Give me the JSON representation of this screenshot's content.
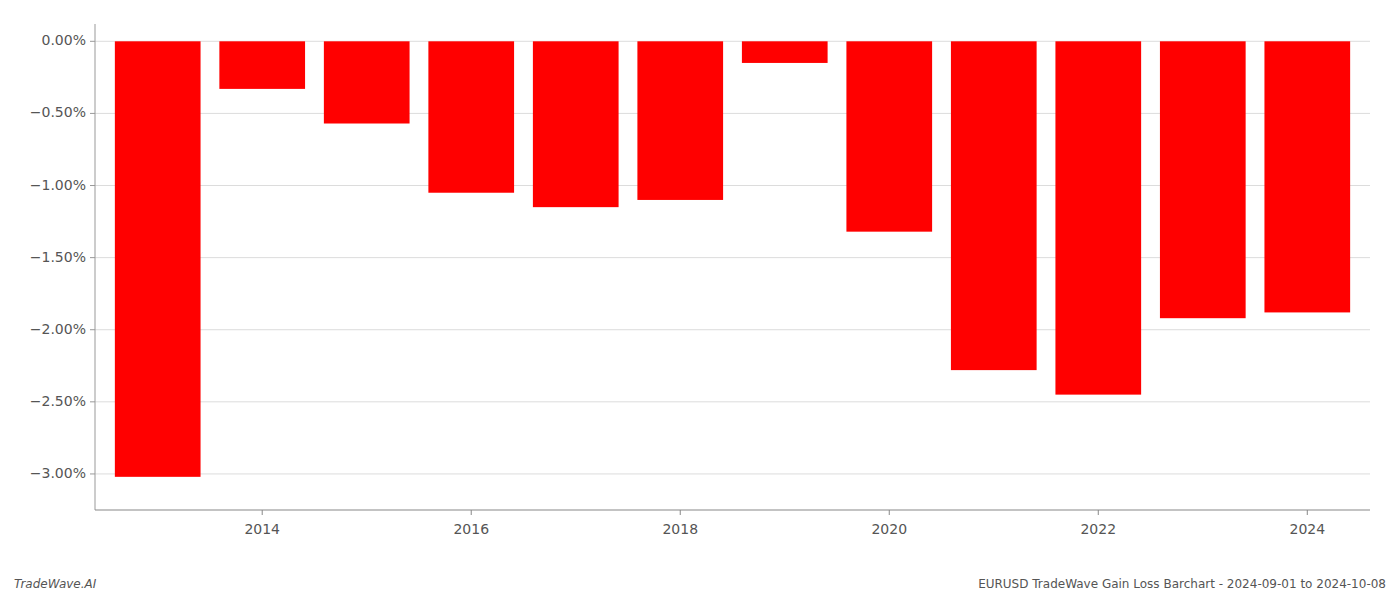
{
  "chart_data": {
    "type": "bar",
    "x": [
      2013,
      2014,
      2015,
      2016,
      2017,
      2018,
      2019,
      2020,
      2021,
      2022,
      2023,
      2024
    ],
    "values": [
      -3.02,
      -0.33,
      -0.57,
      -1.05,
      -1.15,
      -1.1,
      -0.15,
      -1.32,
      -2.28,
      -2.45,
      -1.92,
      -1.88
    ],
    "color": "#ff0000",
    "xlim": [
      2012.4,
      2024.6
    ],
    "xticks": [
      2014,
      2016,
      2018,
      2020,
      2022,
      2024
    ],
    "ylim": [
      -3.25,
      0.12
    ],
    "yticks": [
      {
        "value": 0.0,
        "label": "0.00%"
      },
      {
        "value": -0.5,
        "label": "−0.50%"
      },
      {
        "value": -1.0,
        "label": "−1.00%"
      },
      {
        "value": -1.5,
        "label": "−1.50%"
      },
      {
        "value": -2.0,
        "label": "−2.00%"
      },
      {
        "value": -2.5,
        "label": "−2.50%"
      },
      {
        "value": -3.0,
        "label": "−3.00%"
      }
    ],
    "grid": true,
    "annotations": [
      "TradeWave.AI",
      "EURUSD TradeWave Gain Loss Barchart - 2024-09-01 to 2024-10-08"
    ]
  }
}
